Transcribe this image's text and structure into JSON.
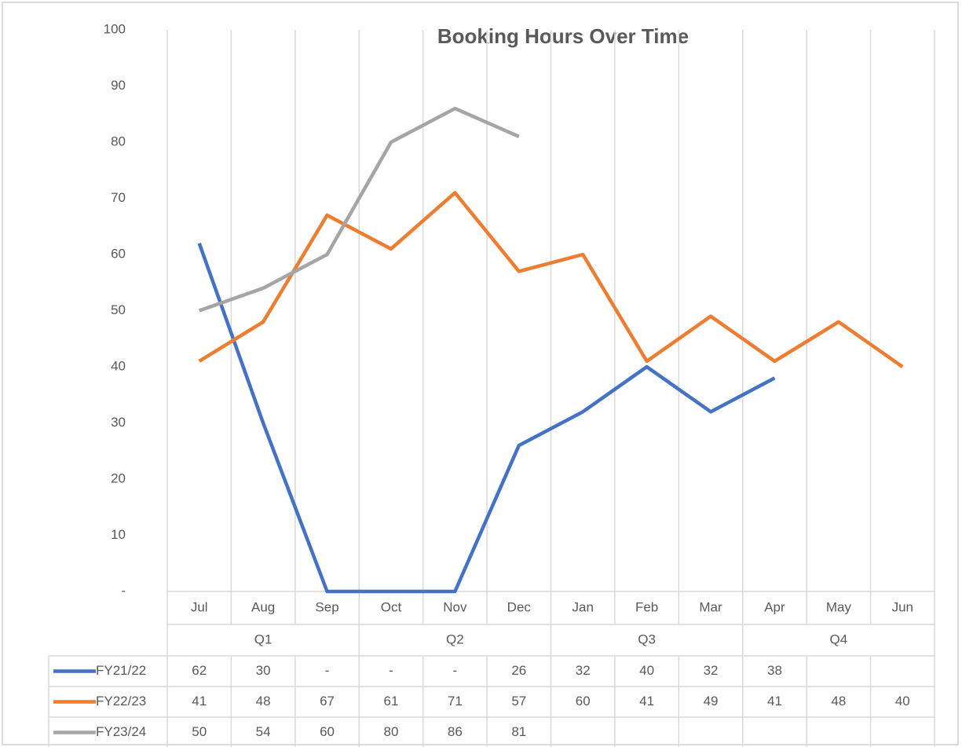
{
  "chart_data": {
    "type": "line",
    "title": "Booking Hours Over Time",
    "categories": [
      "Jul",
      "Aug",
      "Sep",
      "Oct",
      "Nov",
      "Dec",
      "Jan",
      "Feb",
      "Mar",
      "Apr",
      "May",
      "Jun"
    ],
    "quarters": [
      "Q1",
      "Q2",
      "Q3",
      "Q4"
    ],
    "series": [
      {
        "name": "FY21/22",
        "color": "#4472c4",
        "values": [
          62,
          30,
          0,
          0,
          0,
          26,
          32,
          40,
          32,
          38,
          null,
          null
        ],
        "value_labels": [
          "62",
          "30",
          "-",
          "-",
          "-",
          "26",
          "32",
          "40",
          "32",
          "38",
          null,
          null
        ]
      },
      {
        "name": "FY22/23",
        "color": "#ed7d31",
        "values": [
          41,
          48,
          67,
          61,
          71,
          57,
          60,
          41,
          49,
          41,
          48,
          40
        ]
      },
      {
        "name": "FY23/24",
        "color": "#a5a5a5",
        "values": [
          50,
          54,
          60,
          80,
          86,
          81,
          null,
          null,
          null,
          null,
          null,
          null
        ]
      }
    ],
    "ylim": [
      0,
      100
    ],
    "yticks": [
      {
        "value": 0,
        "label": "-"
      },
      10,
      20,
      30,
      40,
      50,
      60,
      70,
      80,
      90,
      100
    ],
    "grid": "vertical"
  }
}
